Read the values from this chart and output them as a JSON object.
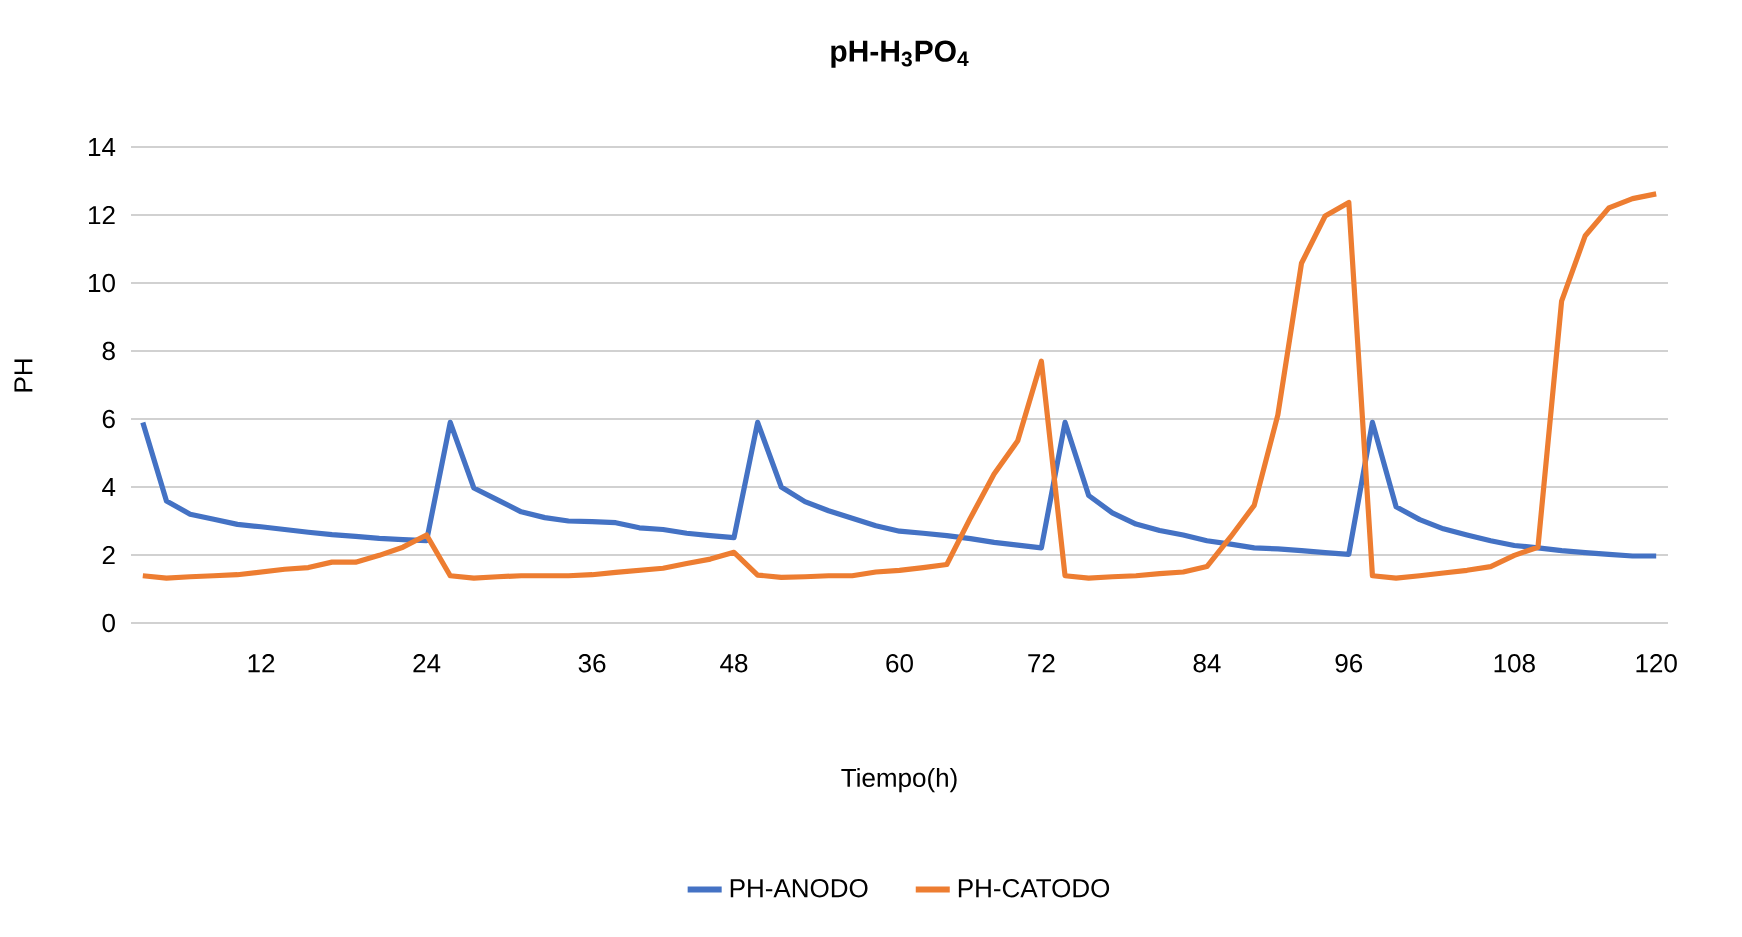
{
  "chart_data": {
    "type": "line",
    "title": "pH-H$_{3}$PO$_{4}$",
    "xlabel": "Tiempo(h)",
    "ylabel": "PH",
    "categories": [
      null,
      null,
      null,
      null,
      null,
      "12",
      null,
      null,
      null,
      null,
      null,
      null,
      "24",
      null,
      null,
      null,
      null,
      null,
      null,
      "36",
      null,
      null,
      null,
      null,
      null,
      "48",
      null,
      null,
      null,
      null,
      null,
      null,
      "60",
      null,
      null,
      null,
      null,
      null,
      "72",
      null,
      null,
      null,
      null,
      null,
      null,
      "84",
      null,
      null,
      null,
      null,
      null,
      "96",
      null,
      null,
      null,
      null,
      null,
      null,
      "108",
      null,
      null,
      null,
      null,
      null,
      "120"
    ],
    "series": [
      {
        "name": "PH-ANODO",
        "color": "#4472c4",
        "values": [
          5.9,
          3.59,
          3.2,
          3.05,
          2.9,
          2.83,
          2.75,
          2.67,
          2.6,
          2.55,
          2.49,
          2.45,
          2.42,
          5.9,
          3.97,
          3.62,
          3.27,
          3.1,
          3.0,
          2.98,
          2.95,
          2.8,
          2.75,
          2.64,
          2.57,
          2.51,
          5.9,
          4.0,
          3.57,
          3.3,
          3.08,
          2.86,
          2.7,
          2.64,
          2.57,
          2.48,
          2.37,
          2.29,
          2.21,
          5.9,
          3.75,
          3.24,
          2.91,
          2.72,
          2.59,
          2.42,
          2.32,
          2.21,
          2.18,
          2.13,
          2.07,
          2.02,
          5.9,
          3.42,
          3.04,
          2.77,
          2.59,
          2.42,
          2.28,
          2.21,
          2.13,
          2.07,
          2.02,
          1.97,
          1.97
        ]
      },
      {
        "name": "PH-CATODO",
        "color": "#ed7d31",
        "values": [
          1.39,
          1.32,
          1.36,
          1.39,
          1.42,
          1.5,
          1.58,
          1.63,
          1.79,
          1.79,
          1.99,
          2.23,
          2.59,
          1.39,
          1.32,
          1.36,
          1.39,
          1.39,
          1.39,
          1.42,
          1.49,
          1.55,
          1.61,
          1.75,
          1.88,
          2.08,
          1.41,
          1.34,
          1.36,
          1.39,
          1.39,
          1.5,
          1.55,
          1.63,
          1.72,
          3.09,
          4.38,
          5.36,
          7.7,
          1.39,
          1.32,
          1.36,
          1.39,
          1.45,
          1.5,
          1.66,
          2.53,
          3.46,
          6.12,
          10.58,
          11.97,
          12.37,
          1.39,
          1.32,
          1.39,
          1.47,
          1.55,
          1.66,
          1.99,
          2.23,
          9.47,
          11.39,
          12.21,
          12.48,
          12.62
        ]
      }
    ],
    "ylim": [
      0,
      14
    ],
    "yticks": [
      0,
      2,
      4,
      6,
      8,
      10,
      12,
      14
    ],
    "grid": "y",
    "legend": "bottom",
    "line_style": "solid",
    "marker": "none"
  }
}
